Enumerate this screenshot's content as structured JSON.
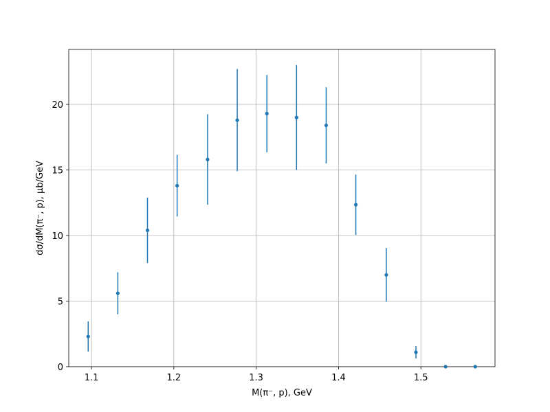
{
  "chart_data": {
    "type": "errorbar",
    "xlabel": "M(π⁻, p), GeV",
    "ylabel": "dσ/dM(π⁻, p), μb/GeV",
    "x": [
      1.096,
      1.132,
      1.168,
      1.204,
      1.241,
      1.277,
      1.313,
      1.349,
      1.385,
      1.421,
      1.458,
      1.494,
      1.53,
      1.566
    ],
    "values": [
      2.3,
      5.6,
      10.4,
      13.8,
      15.8,
      18.8,
      19.3,
      19.0,
      18.4,
      12.35,
      7.0,
      1.1,
      0,
      0
    ],
    "errors": [
      1.15,
      1.6,
      2.5,
      2.35,
      3.45,
      3.9,
      2.95,
      4.0,
      2.9,
      2.3,
      2.05,
      0.47,
      0,
      0
    ],
    "color": "#1f77b4",
    "xlim": [
      1.0724,
      1.59
    ],
    "xticks": [
      1.1,
      1.2,
      1.3,
      1.4,
      1.5
    ],
    "ylim": [
      0,
      24.19
    ],
    "yticks": [
      0,
      5,
      10,
      15,
      20
    ],
    "grid": true
  }
}
